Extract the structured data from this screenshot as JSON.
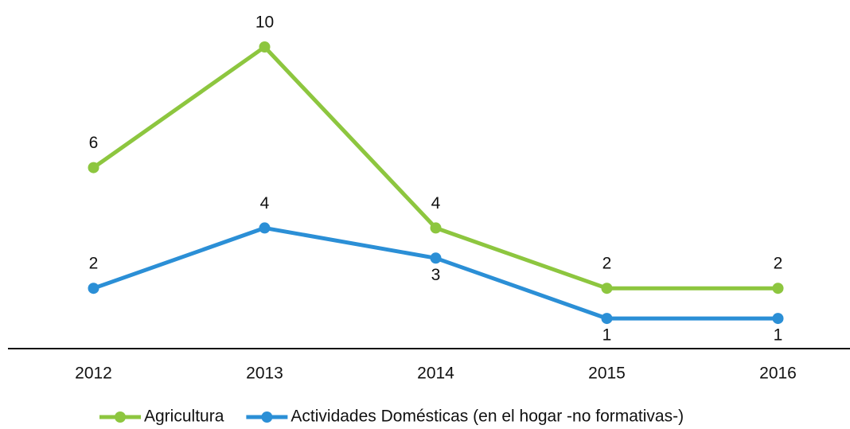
{
  "chart_data": {
    "type": "line",
    "categories": [
      "2012",
      "2013",
      "2014",
      "2015",
      "2016"
    ],
    "series": [
      {
        "name": "Agricultura",
        "color": "#8dc63f",
        "values": [
          6,
          10,
          4,
          2,
          2
        ]
      },
      {
        "name": "Actividades Domésticas (en el hogar -no formativas-)",
        "color": "#2b8fd6",
        "values": [
          2,
          4,
          3,
          1,
          1
        ]
      }
    ],
    "ylim": [
      0,
      10
    ],
    "legend": "bottom"
  }
}
